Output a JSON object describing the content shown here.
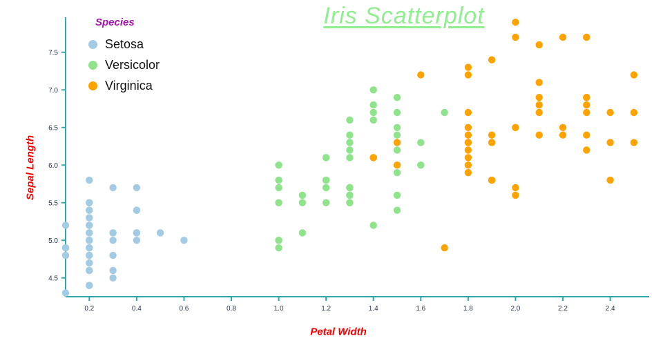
{
  "title": "Iris Scatterplot",
  "legend": {
    "title": "Species",
    "items": [
      {
        "label": "Setosa",
        "color": "#a3cbe3"
      },
      {
        "label": "Versicolor",
        "color": "#8ee38b"
      },
      {
        "label": "Virginica",
        "color": "#ffa300"
      }
    ]
  },
  "colors": {
    "title": "#90ee90",
    "legend_title": "#a215a8",
    "axis_label": "#f40000",
    "axis": "#2fa8a8",
    "tick_label": "#26324b",
    "setosa": "#a3cbe3",
    "versicolor": "#8ee38b",
    "virginica": "#ffa300"
  },
  "chart_data": {
    "type": "scatter",
    "title": "Iris Scatterplot",
    "xlabel": "Petal Width",
    "ylabel": "Sepal Length",
    "xlim": [
      0.1,
      2.55
    ],
    "ylim": [
      4.25,
      7.92
    ],
    "xticks": [
      0.2,
      0.4,
      0.6,
      0.8,
      1.0,
      1.2,
      1.4,
      1.6,
      1.8,
      2.0,
      2.2,
      2.4
    ],
    "yticks": [
      4.5,
      5.0,
      5.5,
      6.0,
      6.5,
      7.0,
      7.5
    ],
    "grid": false,
    "legend_position": "top-left",
    "marker_radius": 5.2,
    "series": [
      {
        "name": "Setosa",
        "color": "#a3cbe3",
        "points": [
          [
            0.2,
            5.1
          ],
          [
            0.2,
            4.9
          ],
          [
            0.2,
            4.7
          ],
          [
            0.2,
            4.6
          ],
          [
            0.2,
            5.0
          ],
          [
            0.4,
            5.4
          ],
          [
            0.3,
            4.6
          ],
          [
            0.2,
            5.0
          ],
          [
            0.2,
            4.4
          ],
          [
            0.1,
            4.9
          ],
          [
            0.2,
            5.4
          ],
          [
            0.2,
            4.8
          ],
          [
            0.1,
            4.8
          ],
          [
            0.1,
            4.3
          ],
          [
            0.2,
            5.8
          ],
          [
            0.4,
            5.7
          ],
          [
            0.4,
            5.4
          ],
          [
            0.3,
            5.1
          ],
          [
            0.3,
            5.7
          ],
          [
            0.3,
            5.1
          ],
          [
            0.2,
            5.4
          ],
          [
            0.4,
            5.1
          ],
          [
            0.2,
            4.6
          ],
          [
            0.5,
            5.1
          ],
          [
            0.2,
            4.8
          ],
          [
            0.2,
            5.0
          ],
          [
            0.4,
            5.0
          ],
          [
            0.2,
            5.2
          ],
          [
            0.2,
            5.2
          ],
          [
            0.2,
            4.7
          ],
          [
            0.2,
            4.8
          ],
          [
            0.4,
            5.4
          ],
          [
            0.1,
            5.2
          ],
          [
            0.2,
            5.5
          ],
          [
            0.2,
            4.9
          ],
          [
            0.2,
            5.0
          ],
          [
            0.2,
            5.5
          ],
          [
            0.1,
            4.9
          ],
          [
            0.2,
            4.4
          ],
          [
            0.2,
            5.1
          ],
          [
            0.3,
            5.0
          ],
          [
            0.3,
            4.5
          ],
          [
            0.2,
            4.4
          ],
          [
            0.6,
            5.0
          ],
          [
            0.4,
            5.1
          ],
          [
            0.3,
            4.8
          ],
          [
            0.2,
            5.1
          ],
          [
            0.2,
            4.6
          ],
          [
            0.2,
            5.3
          ],
          [
            0.2,
            5.0
          ]
        ]
      },
      {
        "name": "Versicolor",
        "color": "#8ee38b",
        "points": [
          [
            1.4,
            7.0
          ],
          [
            1.5,
            6.4
          ],
          [
            1.5,
            6.9
          ],
          [
            1.3,
            5.5
          ],
          [
            1.5,
            6.5
          ],
          [
            1.3,
            5.7
          ],
          [
            1.6,
            6.3
          ],
          [
            1.0,
            4.9
          ],
          [
            1.3,
            6.6
          ],
          [
            1.4,
            5.2
          ],
          [
            1.0,
            5.0
          ],
          [
            1.5,
            5.9
          ],
          [
            1.0,
            6.0
          ],
          [
            1.4,
            6.1
          ],
          [
            1.3,
            5.6
          ],
          [
            1.4,
            6.7
          ],
          [
            1.5,
            5.6
          ],
          [
            1.0,
            5.8
          ],
          [
            1.5,
            6.2
          ],
          [
            1.1,
            5.6
          ],
          [
            1.8,
            5.9
          ],
          [
            1.3,
            6.1
          ],
          [
            1.5,
            6.3
          ],
          [
            1.2,
            6.1
          ],
          [
            1.3,
            6.4
          ],
          [
            1.4,
            6.6
          ],
          [
            1.4,
            6.8
          ],
          [
            1.7,
            6.7
          ],
          [
            1.5,
            6.0
          ],
          [
            1.0,
            5.7
          ],
          [
            1.1,
            5.5
          ],
          [
            1.0,
            5.5
          ],
          [
            1.2,
            5.8
          ],
          [
            1.6,
            6.0
          ],
          [
            1.5,
            5.4
          ],
          [
            1.6,
            6.0
          ],
          [
            1.5,
            6.7
          ],
          [
            1.3,
            6.3
          ],
          [
            1.3,
            5.6
          ],
          [
            1.3,
            5.5
          ],
          [
            1.2,
            5.5
          ],
          [
            1.4,
            6.1
          ],
          [
            1.2,
            5.8
          ],
          [
            1.0,
            5.0
          ],
          [
            1.3,
            5.6
          ],
          [
            1.2,
            5.7
          ],
          [
            1.3,
            5.7
          ],
          [
            1.3,
            6.2
          ],
          [
            1.1,
            5.1
          ],
          [
            1.3,
            5.7
          ]
        ]
      },
      {
        "name": "Virginica",
        "color": "#ffa300",
        "points": [
          [
            2.5,
            6.3
          ],
          [
            1.9,
            5.8
          ],
          [
            2.1,
            7.1
          ],
          [
            1.8,
            6.3
          ],
          [
            2.2,
            6.5
          ],
          [
            2.1,
            7.6
          ],
          [
            1.7,
            4.9
          ],
          [
            1.8,
            7.3
          ],
          [
            1.8,
            6.7
          ],
          [
            2.5,
            7.2
          ],
          [
            2.0,
            6.5
          ],
          [
            1.9,
            6.4
          ],
          [
            2.1,
            6.8
          ],
          [
            2.0,
            5.7
          ],
          [
            2.4,
            5.8
          ],
          [
            2.3,
            6.4
          ],
          [
            1.8,
            6.5
          ],
          [
            2.2,
            7.7
          ],
          [
            2.3,
            7.7
          ],
          [
            1.5,
            6.0
          ],
          [
            2.3,
            6.9
          ],
          [
            2.0,
            5.6
          ],
          [
            2.0,
            7.7
          ],
          [
            1.8,
            6.3
          ],
          [
            2.1,
            6.7
          ],
          [
            1.8,
            7.2
          ],
          [
            1.8,
            6.2
          ],
          [
            1.8,
            6.1
          ],
          [
            2.1,
            6.4
          ],
          [
            1.6,
            7.2
          ],
          [
            1.9,
            7.4
          ],
          [
            2.0,
            7.9
          ],
          [
            2.2,
            6.4
          ],
          [
            1.5,
            6.3
          ],
          [
            1.4,
            6.1
          ],
          [
            2.3,
            7.7
          ],
          [
            2.4,
            6.3
          ],
          [
            1.8,
            6.4
          ],
          [
            1.8,
            6.0
          ],
          [
            2.1,
            6.9
          ],
          [
            2.4,
            6.7
          ],
          [
            2.3,
            6.9
          ],
          [
            1.9,
            5.8
          ],
          [
            2.3,
            6.8
          ],
          [
            2.5,
            6.7
          ],
          [
            2.3,
            6.7
          ],
          [
            1.9,
            6.3
          ],
          [
            2.0,
            6.5
          ],
          [
            2.3,
            6.2
          ],
          [
            1.8,
            5.9
          ]
        ]
      }
    ]
  }
}
